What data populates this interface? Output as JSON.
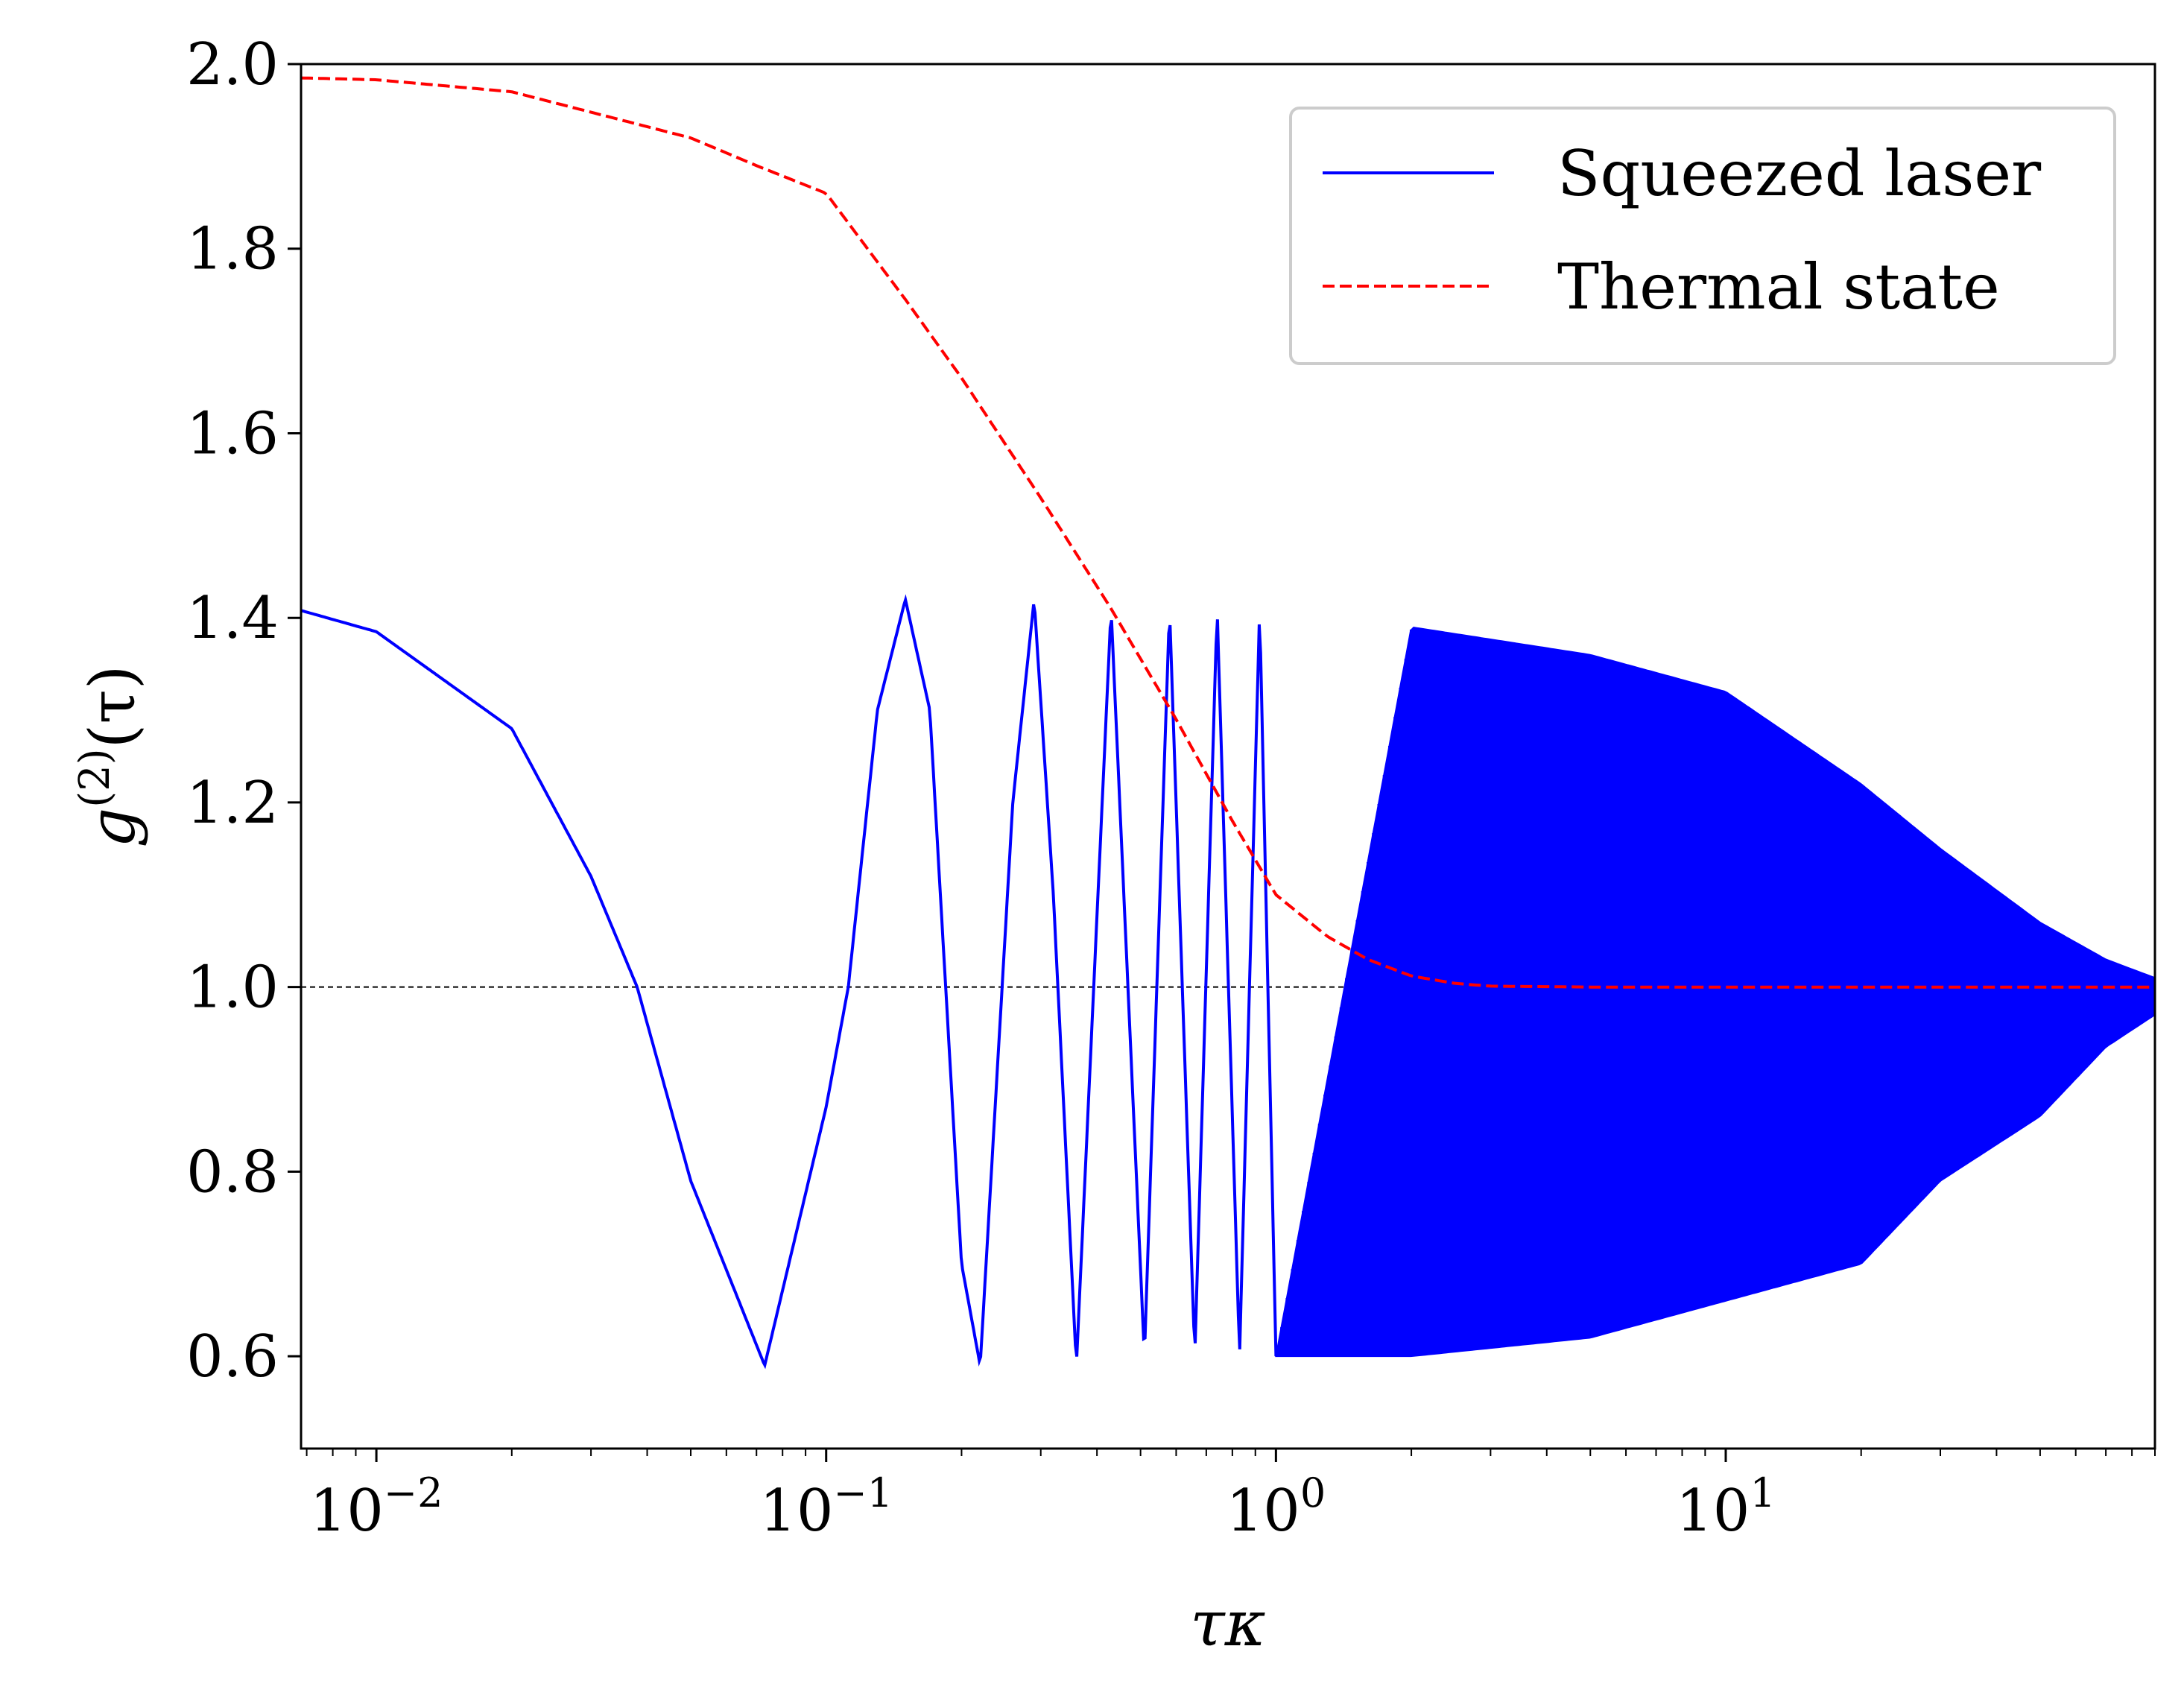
{
  "chart_data": {
    "type": "line",
    "xscale": "log",
    "xlim": [
      0.0068,
      90
    ],
    "ylim": [
      0.5,
      2.0
    ],
    "xlabel": "τκ",
    "ylabel": "g(2)(τ)",
    "ylabel_parts": {
      "base": "g",
      "sup": "(2)",
      "arg": "(τ)"
    },
    "x_ticks": [
      {
        "value": 0.01,
        "base": "10",
        "exp": "−2"
      },
      {
        "value": 0.1,
        "base": "10",
        "exp": "−1"
      },
      {
        "value": 1,
        "base": "10",
        "exp": "0"
      },
      {
        "value": 10,
        "base": "10",
        "exp": "1"
      }
    ],
    "y_ticks": [
      {
        "value": 0.6,
        "label": "0.6"
      },
      {
        "value": 0.8,
        "label": "0.8"
      },
      {
        "value": 1.0,
        "label": "1.0"
      },
      {
        "value": 1.2,
        "label": "1.2"
      },
      {
        "value": 1.4,
        "label": "1.4"
      },
      {
        "value": 1.6,
        "label": "1.6"
      },
      {
        "value": 1.8,
        "label": "1.8"
      },
      {
        "value": 2.0,
        "label": "2.0"
      }
    ],
    "reference_line": {
      "y": 1.0,
      "style": "dashed",
      "color": "#000000"
    },
    "legend": {
      "placement": "top-right"
    },
    "series": [
      {
        "name": "Squeezed laser",
        "color": "#0000ff",
        "style": "solid",
        "x": [
          0.0068,
          0.01,
          0.02,
          0.03,
          0.038,
          0.05,
          0.073,
          0.1,
          0.112,
          0.13,
          0.15,
          0.17,
          0.2,
          0.22,
          0.26,
          0.29,
          0.32,
          0.36,
          0.43,
          0.51,
          0.58,
          0.66,
          0.74,
          0.83,
          0.92,
          1.0,
          2.0,
          5.0,
          10,
          20,
          30,
          50,
          70,
          90
        ],
        "values": [
          1.408,
          1.385,
          1.28,
          1.12,
          1.0,
          0.79,
          0.59,
          0.87,
          1.0,
          1.3,
          1.42,
          1.3,
          0.7,
          0.59,
          1.2,
          1.42,
          1.1,
          0.59,
          1.41,
          0.6,
          1.41,
          0.6,
          1.41,
          0.6,
          1.41,
          0.6,
          1.39,
          1.36,
          1.32,
          1.22,
          1.15,
          1.07,
          1.03,
          1.01
        ],
        "lower_envelope": [
          0.6,
          0.6,
          0.62,
          0.66,
          0.7,
          0.79,
          0.86,
          0.935,
          0.97,
          0.99
        ]
      },
      {
        "name": "Thermal state",
        "color": "#ff0000",
        "style": "dashed",
        "x": [
          0.0068,
          0.01,
          0.02,
          0.05,
          0.07,
          0.1,
          0.15,
          0.2,
          0.3,
          0.43,
          0.6,
          0.8,
          1.0,
          1.3,
          1.6,
          2.0,
          2.5,
          3.0,
          5.0,
          10,
          90
        ],
        "values": [
          1.985,
          1.983,
          1.97,
          1.92,
          1.89,
          1.86,
          1.745,
          1.66,
          1.53,
          1.41,
          1.29,
          1.18,
          1.1,
          1.055,
          1.03,
          1.012,
          1.004,
          1.001,
          1.0,
          1.0,
          1.0
        ]
      }
    ]
  }
}
